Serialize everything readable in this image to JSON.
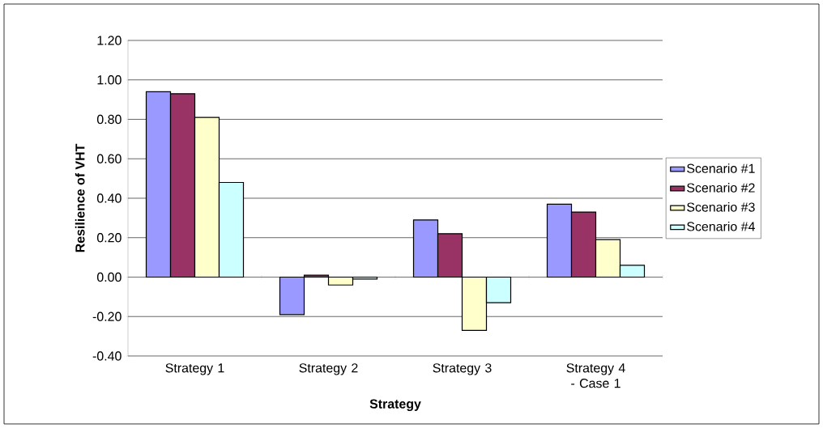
{
  "chart_data": {
    "type": "bar",
    "xlabel": "Strategy",
    "ylabel": "Resilience of VHT",
    "categories": [
      "Strategy 1",
      "Strategy 2",
      "Strategy 3",
      "Strategy 4 - Case 1"
    ],
    "series": [
      {
        "name": "Scenario #1",
        "color": "#9999ff",
        "values": [
          0.94,
          -0.19,
          0.29,
          0.37
        ]
      },
      {
        "name": "Scenario #2",
        "color": "#993366",
        "values": [
          0.93,
          0.01,
          0.22,
          0.33
        ]
      },
      {
        "name": "Scenario #3",
        "color": "#ffffcc",
        "values": [
          0.81,
          -0.04,
          -0.27,
          0.19
        ]
      },
      {
        "name": "Scenario #4",
        "color": "#ccffff",
        "values": [
          0.48,
          -0.01,
          -0.13,
          0.06
        ]
      }
    ],
    "ylim": [
      -0.4,
      1.2
    ],
    "yticks": [
      {
        "value": -0.4,
        "label": "-0.40"
      },
      {
        "value": -0.2,
        "label": "-0.20"
      },
      {
        "value": 0,
        "label": "0.00"
      },
      {
        "value": 0.2,
        "label": "0.20"
      },
      {
        "value": 0.4,
        "label": "0.40"
      },
      {
        "value": 0.6,
        "label": "0.60"
      },
      {
        "value": 0.8,
        "label": "0.80"
      },
      {
        "value": 1.0,
        "label": "1.00"
      },
      {
        "value": 1.2,
        "label": "1.20"
      }
    ],
    "grid": "y",
    "legend": "right"
  }
}
